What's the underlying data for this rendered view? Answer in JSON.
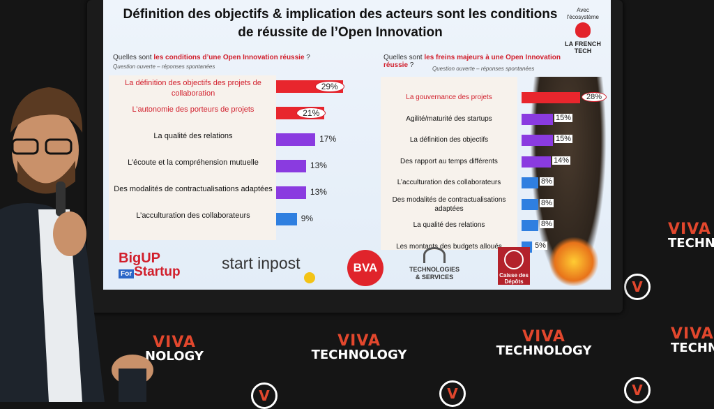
{
  "slide": {
    "title_line1": "Définition des objectifs & implication des acteurs sont les conditions",
    "title_line2": "de réussite de l’Open Innovation",
    "brand_small_line1": "Avec",
    "brand_small_line2": "l'écosystème",
    "brand_frenchtech": "LA FRENCH TECH",
    "left": {
      "question_prefix": "Quelles sont ",
      "question_highlight": "les conditions d’une Open Innovation réussie",
      "question_suffix": " ?",
      "subtitle": "Question ouverte – réponses spontanées",
      "items": [
        {
          "label": "La définition des objectifs des projets de collaboration",
          "value": 29,
          "pct": "29%",
          "highlight": true,
          "color": "#e8262d"
        },
        {
          "label": "L’autonomie des porteurs de projets",
          "value": 21,
          "pct": "21%",
          "highlight": true,
          "color": "#e8262d"
        },
        {
          "label": "La qualité des relations",
          "value": 17,
          "pct": "17%",
          "highlight": false,
          "color": "#8a3be0"
        },
        {
          "label": "L’écoute et la compréhension mutuelle",
          "value": 13,
          "pct": "13%",
          "highlight": false,
          "color": "#8a3be0"
        },
        {
          "label": "Des modalités de contractualisations adaptées",
          "value": 13,
          "pct": "13%",
          "highlight": false,
          "color": "#8a3be0"
        },
        {
          "label": "L’acculturation des collaborateurs",
          "value": 9,
          "pct": "9%",
          "highlight": false,
          "color": "#2f7fe0"
        }
      ]
    },
    "right": {
      "question_prefix": "Quelles sont ",
      "question_highlight": "les freins majeurs à une Open Innovation réussie",
      "question_suffix": " ?",
      "subtitle": "Question ouverte – réponses spontanées",
      "items": [
        {
          "label": "La gouvernance des projets",
          "value": 28,
          "pct": "28%",
          "highlight": true,
          "color": "#e8262d"
        },
        {
          "label": "Agilité/maturité des startups",
          "value": 15,
          "pct": "15%",
          "highlight": false,
          "color": "#8a3be0"
        },
        {
          "label": "La définition des objectifs",
          "value": 15,
          "pct": "15%",
          "highlight": false,
          "color": "#8a3be0"
        },
        {
          "label": "Des rapport au temps différents",
          "value": 14,
          "pct": "14%",
          "highlight": false,
          "color": "#8a3be0"
        },
        {
          "label": "L’acculturation des collaborateurs",
          "value": 8,
          "pct": "8%",
          "highlight": false,
          "color": "#2f7fe0"
        },
        {
          "label": "Des modalités de contractualisations adaptées",
          "value": 8,
          "pct": "8%",
          "highlight": false,
          "color": "#2f7fe0"
        },
        {
          "label": "La qualité des relations",
          "value": 8,
          "pct": "8%",
          "highlight": false,
          "color": "#2f7fe0"
        },
        {
          "label": "Les montants des budgets alloués",
          "value": 5,
          "pct": "5%",
          "highlight": false,
          "color": "#2f7fe0"
        }
      ]
    },
    "logos": {
      "bigup_1": "BigUP",
      "bigup_for": "For",
      "bigup_2": "Startup",
      "startinpost": "start inpost",
      "bva": "BVA",
      "ca_1": "TECHNOLOGIES",
      "ca_2": "& SERVICES",
      "cdc": "Caisse des Dépôts"
    }
  },
  "venue": {
    "viva": "VIVA",
    "technology": "TECHNOLOGY",
    "techno_partial": "TECHNO",
    "nology_partial": "NOLOGY",
    "v": "V"
  }
}
